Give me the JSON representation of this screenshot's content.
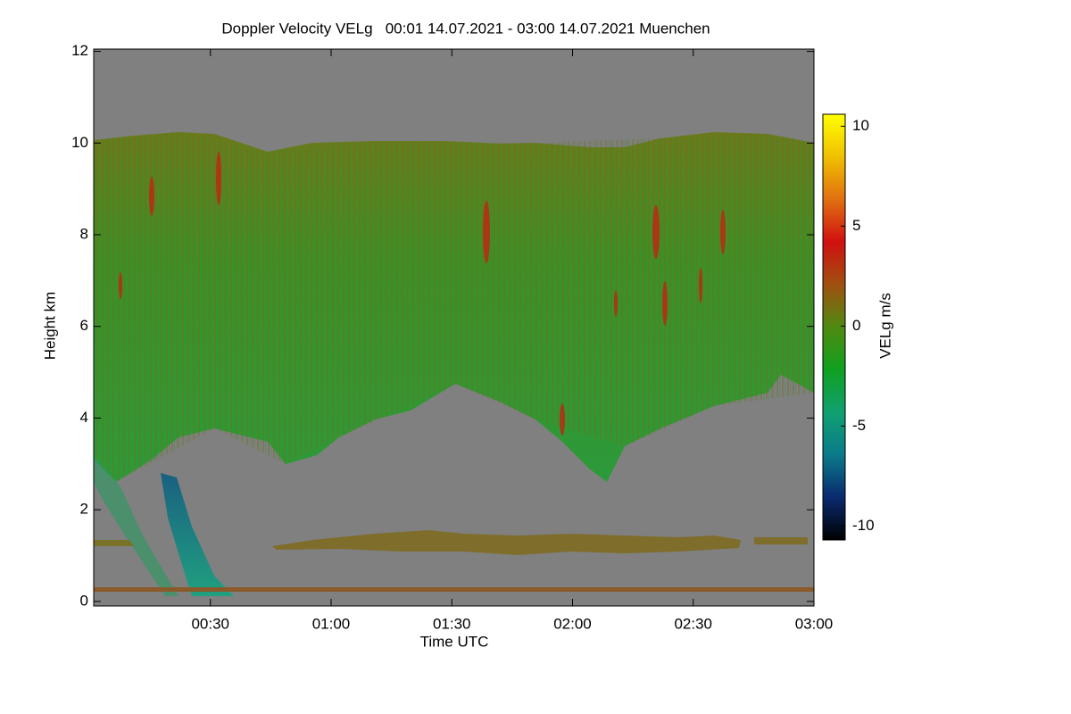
{
  "chart_data": {
    "type": "heatmap",
    "title": "Doppler Velocity VELg   00:01 14.07.2021 - 03:00 14.07.2021 Muenchen",
    "x_label": "Time UTC",
    "y_label": "Height km",
    "xlim": [
      1,
      180
    ],
    "xticks": [
      {
        "value": 30,
        "label": "00:30"
      },
      {
        "value": 60,
        "label": "01:00"
      },
      {
        "value": 90,
        "label": "01:30"
      },
      {
        "value": 120,
        "label": "02:00"
      },
      {
        "value": 150,
        "label": "02:30"
      },
      {
        "value": 180,
        "label": "03:00"
      }
    ],
    "ylim": [
      -0.1,
      12.05
    ],
    "yticks": [
      0,
      2,
      4,
      6,
      8,
      10,
      12
    ],
    "colorbar": {
      "label": "VELg m/s",
      "lim": [
        -10.7,
        10.6
      ],
      "ticks": [
        -10,
        -5,
        0,
        5,
        10
      ],
      "colors": [
        "#000000",
        "#0a2a6e",
        "#0a7a8a",
        "#10a070",
        "#10a020",
        "#508a10",
        "#a05010",
        "#d01010",
        "#e07010",
        "#f0c000",
        "#ffff00"
      ]
    }
  }
}
